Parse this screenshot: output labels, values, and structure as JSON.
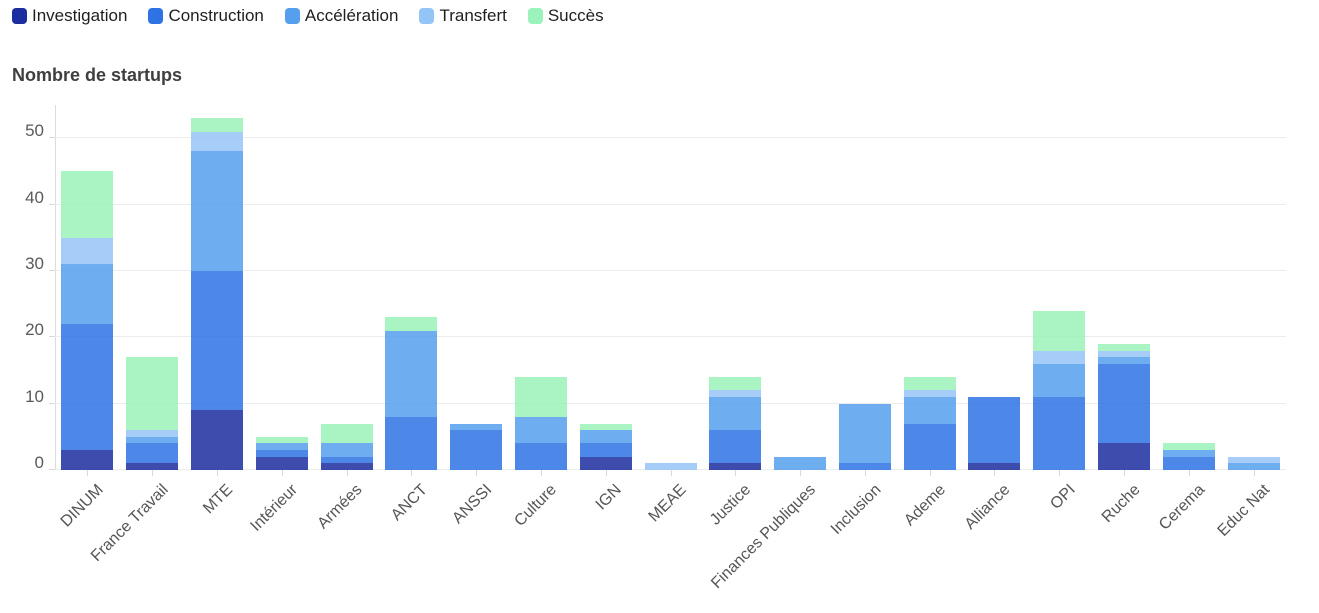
{
  "chart_data": {
    "type": "bar",
    "stacked": true,
    "title": "Nombre de startups",
    "xlabel": "",
    "ylabel": "Nombre de startups",
    "ylim": [
      0,
      55
    ],
    "yticks": [
      0,
      10,
      20,
      30,
      40,
      50
    ],
    "grid": true,
    "legend_position": "top-left",
    "bar_opacity": 0.85,
    "categories": [
      "DINUM",
      "France Travail",
      "MTE",
      "Intérieur",
      "Armées",
      "ANCT",
      "ANSSI",
      "Culture",
      "IGN",
      "MEAE",
      "Justice",
      "Finances Publiques",
      "Inclusion",
      "Ademe",
      "Alliance",
      "OPI",
      "Ruche",
      "Cerema",
      "Educ Nat"
    ],
    "series": [
      {
        "name": "Investigation",
        "color": "#1c2da0",
        "values": [
          3,
          1,
          9,
          2,
          1,
          0,
          0,
          0,
          2,
          0,
          1,
          0,
          0,
          0,
          1,
          0,
          4,
          0,
          0
        ]
      },
      {
        "name": "Construction",
        "color": "#2e72e4",
        "values": [
          19,
          3,
          21,
          1,
          1,
          8,
          6,
          4,
          2,
          0,
          5,
          0,
          1,
          7,
          10,
          11,
          12,
          2,
          0
        ]
      },
      {
        "name": "Accélération",
        "color": "#569fee",
        "values": [
          9,
          1,
          18,
          1,
          2,
          13,
          1,
          4,
          2,
          0,
          5,
          2,
          9,
          4,
          0,
          5,
          1,
          1,
          1
        ]
      },
      {
        "name": "Transfert",
        "color": "#95c4f6",
        "values": [
          4,
          1,
          3,
          0,
          0,
          0,
          0,
          0,
          0,
          1,
          1,
          0,
          0,
          1,
          0,
          2,
          1,
          0,
          1
        ]
      },
      {
        "name": "Succès",
        "color": "#9bf2ba",
        "values": [
          10,
          11,
          2,
          1,
          3,
          2,
          0,
          6,
          1,
          0,
          2,
          0,
          0,
          2,
          0,
          6,
          1,
          1,
          0
        ]
      }
    ],
    "totals": [
      45,
      17,
      53,
      5,
      7,
      23,
      7,
      14,
      7,
      1,
      14,
      2,
      10,
      14,
      11,
      24,
      19,
      4,
      2
    ]
  }
}
